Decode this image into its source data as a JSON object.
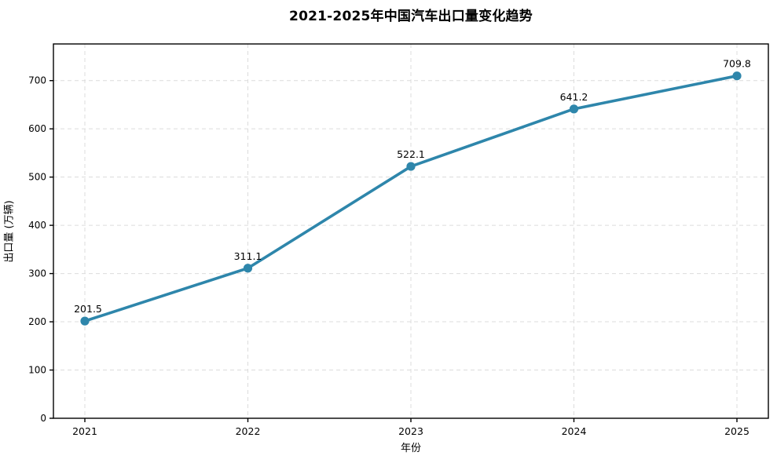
{
  "chart_data": {
    "type": "line",
    "title": "2021-2025年中国汽车出口量变化趋势",
    "xlabel": "年份",
    "ylabel": "出口量 (万辆)",
    "x": [
      2021,
      2022,
      2023,
      2024,
      2025
    ],
    "values": [
      201.5,
      311.1,
      522.1,
      641.2,
      709.8
    ],
    "point_labels": [
      "201.5",
      "311.1",
      "522.1",
      "641.2",
      "709.8"
    ],
    "yticks": [
      0,
      100,
      200,
      300,
      400,
      500,
      600,
      700
    ],
    "ylim": [
      0,
      776
    ],
    "grid": "dashed-both",
    "legend": "none",
    "colors": {
      "line": "#2E86AB",
      "marker": "#2E86AB",
      "grid": "#dcdcdc",
      "axis": "#000000",
      "text": "#000000",
      "background": "#ffffff"
    }
  }
}
